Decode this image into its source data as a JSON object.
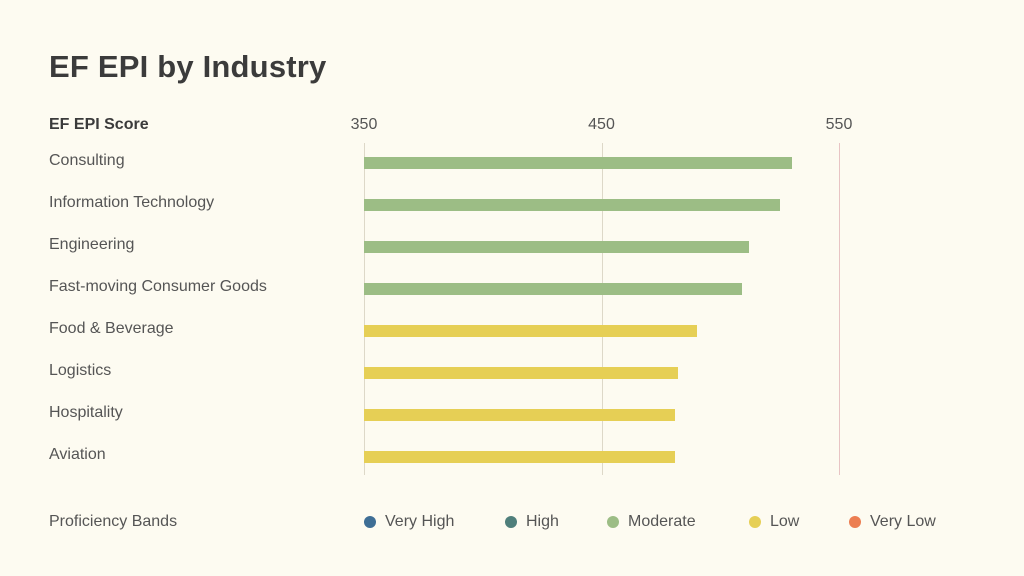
{
  "chart_data": {
    "type": "bar",
    "orientation": "horizontal",
    "title": "EF EPI by Industry",
    "xlabel": "EF EPI Score",
    "xlim": [
      350,
      600
    ],
    "xticks": [
      350,
      450,
      550
    ],
    "categories": [
      "Consulting",
      "Information Technology",
      "Engineering",
      "Fast-moving Consumer Goods",
      "Food & Beverage",
      "Logistics",
      "Hospitality",
      "Aviation"
    ],
    "values": [
      530,
      525,
      512,
      509,
      490,
      482,
      481,
      481
    ],
    "bands": [
      "Moderate",
      "Moderate",
      "Moderate",
      "Moderate",
      "Low",
      "Low",
      "Low",
      "Low"
    ],
    "legend": {
      "title": "Proficiency Bands",
      "placement": "bottom",
      "items": [
        {
          "label": "Very High",
          "color": "#3e6e95"
        },
        {
          "label": "High",
          "color": "#4f7f7b"
        },
        {
          "label": "Moderate",
          "color": "#9cbd85"
        },
        {
          "label": "Low",
          "color": "#e6cf55"
        },
        {
          "label": "Very Low",
          "color": "#ec7e52"
        }
      ]
    },
    "grid": true
  }
}
